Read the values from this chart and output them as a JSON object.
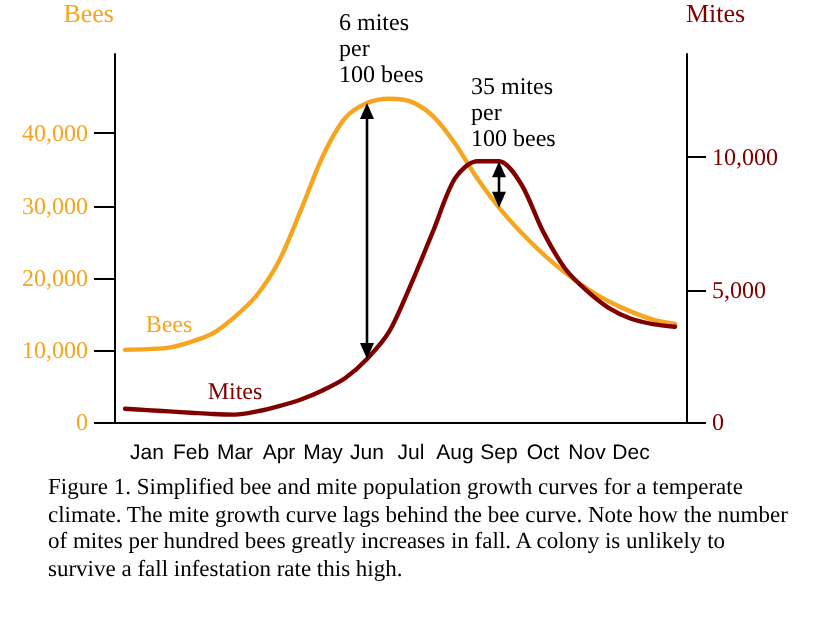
{
  "chart_data": {
    "type": "line",
    "ylabel": "Bees",
    "y2label": "Mites",
    "categories": [
      null,
      "Jan",
      null,
      "Feb",
      null,
      "Mar",
      null,
      "Apr",
      null,
      "May",
      null,
      "Jun",
      null,
      "Jul",
      null,
      "Aug",
      null,
      "Sep",
      null,
      "Oct",
      null,
      "Nov",
      null,
      "Dec",
      null,
      null
    ],
    "series": [
      {
        "name": "Bees",
        "color": "#f7a51e",
        "values": [
          10000,
          10100,
          10300,
          11100,
          12300,
          14600,
          17600,
          22300,
          29400,
          36900,
          42100,
          44200,
          44800,
          44400,
          42400,
          38600,
          33800,
          29700,
          26300,
          23300,
          20700,
          18500,
          16700,
          15300,
          14200,
          13600
        ]
      },
      {
        "name": "Mites",
        "color": "#800000",
        "axis": "y2",
        "values": [
          500,
          450,
          400,
          350,
          300,
          280,
          400,
          600,
          850,
          1200,
          1650,
          2380,
          3400,
          5200,
          7200,
          9200,
          9850,
          9850,
          9000,
          7200,
          5800,
          4950,
          4300,
          3900,
          3700,
          3600
        ]
      }
    ],
    "ylim": [
      0,
      51000
    ],
    "yticks": [
      0,
      {
        "value": 10000,
        "label": "10,000"
      },
      {
        "value": 20000,
        "label": "20,000"
      },
      {
        "value": 30000,
        "label": "30,000"
      },
      {
        "value": 40000,
        "label": "40,000"
      }
    ],
    "y2lim": [
      0,
      13900
    ],
    "y2ticks": [
      0,
      {
        "value": 5000,
        "label": "5,000"
      },
      {
        "value": 10000,
        "label": "10,000"
      }
    ],
    "annotations": [
      {
        "text": "6 mites\nper\n100 bees",
        "x": "Jun",
        "y": 45800
      },
      {
        "text": "35 mites\nper\n100 bees",
        "x": "Sep",
        "y": 36900
      },
      "Figure 1.  Simplified bee and mite population growth curves for a temperate climate.  The mite growth curve lags behind the bee curve. Note how the number of mites per hundred bees  greatly increases in fall.  A colony is unlikely to survive a fall infestation rate this high."
    ],
    "grid": false,
    "legend": false,
    "marker": "none",
    "line_style": "solid"
  }
}
